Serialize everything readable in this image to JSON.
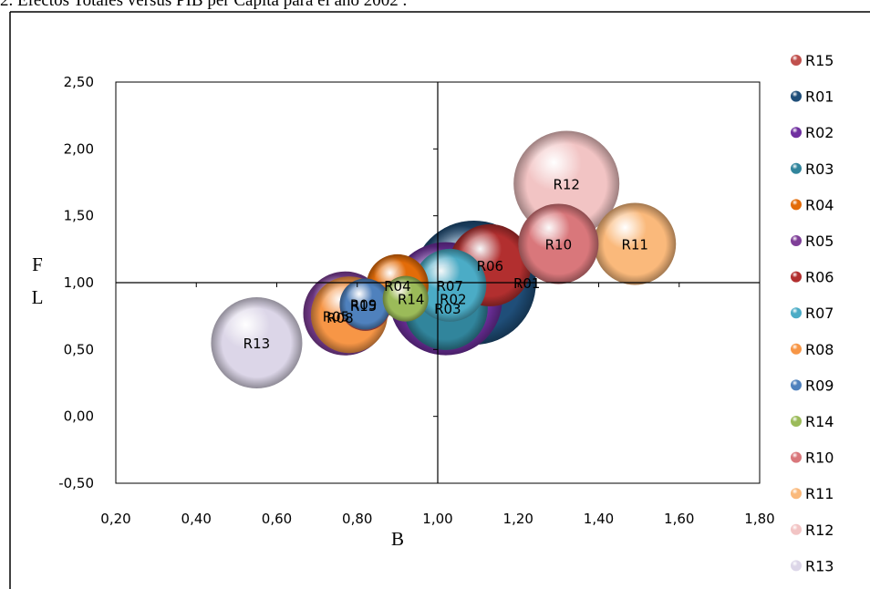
{
  "chart_data": {
    "type": "bubble",
    "title": "2. Efectos Totales versus PIB per Cápita para el año 2002 .",
    "xlabel": "B",
    "ylabel": [
      "F",
      "L"
    ],
    "xlim": [
      0.2,
      1.8
    ],
    "ylim": [
      -0.5,
      2.5
    ],
    "x_ticks": [
      "0,20",
      "0,40",
      "0,60",
      "0,80",
      "1,00",
      "1,20",
      "1,40",
      "1,60",
      "1,80"
    ],
    "y_ticks": [
      "-0,50",
      "0,00",
      "0,50",
      "1,00",
      "1,50",
      "2,00",
      "2,50"
    ],
    "legend_position": "right",
    "series": [
      {
        "name": "R15",
        "x": 0.82,
        "y": 0.83,
        "color": "#c0504d"
      },
      {
        "name": "R01",
        "x": 1.09,
        "y": 1.0,
        "color": "#1f4e79"
      },
      {
        "name": "R02",
        "x": 1.02,
        "y": 0.88,
        "color": "#7030a0"
      },
      {
        "name": "R03",
        "x": 1.02,
        "y": 0.81,
        "color": "#31859c"
      },
      {
        "name": "R04",
        "x": 0.9,
        "y": 0.98,
        "color": "#e36c09"
      },
      {
        "name": "R05",
        "x": 0.77,
        "y": 0.77,
        "color": "#7f3f98"
      },
      {
        "name": "R06",
        "x": 1.13,
        "y": 1.13,
        "color": "#b22f2f"
      },
      {
        "name": "R07",
        "x": 1.03,
        "y": 0.98,
        "color": "#4bacc6"
      },
      {
        "name": "R08",
        "x": 0.78,
        "y": 0.76,
        "color": "#f79646"
      },
      {
        "name": "R09",
        "x": 0.82,
        "y": 0.84,
        "color": "#4f81bd"
      },
      {
        "name": "R14",
        "x": 0.92,
        "y": 0.88,
        "color": "#9bbb59"
      },
      {
        "name": "R10",
        "x": 1.3,
        "y": 1.29,
        "color": "#d9777b"
      },
      {
        "name": "R11",
        "x": 1.49,
        "y": 1.29,
        "color": "#fab97b"
      },
      {
        "name": "R12",
        "x": 1.32,
        "y": 1.74,
        "color": "#f2c4c4"
      },
      {
        "name": "R13",
        "x": 0.55,
        "y": 0.55,
        "color": "#dcd6e8"
      }
    ]
  }
}
